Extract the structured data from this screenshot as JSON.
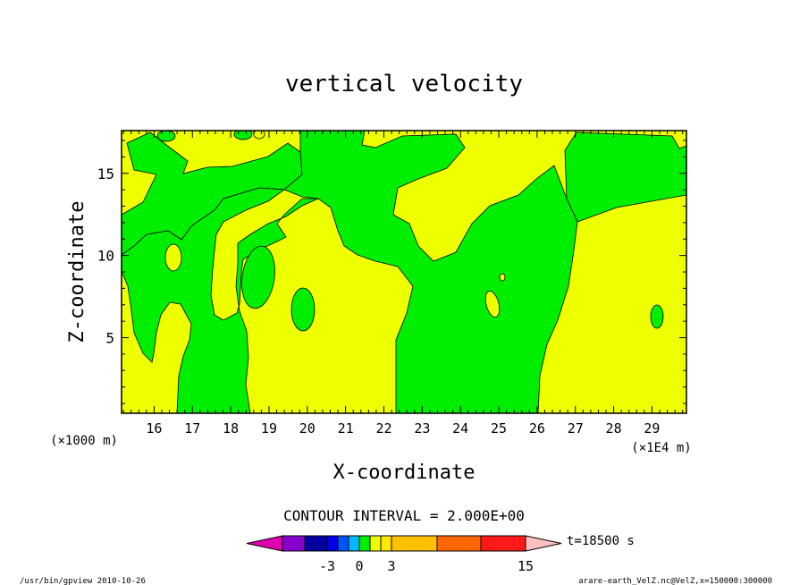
{
  "chart_data": {
    "type": "heatmap",
    "title": "vertical velocity",
    "xlabel": "X-coordinate",
    "ylabel": "Z-coordinate",
    "x_unit_left": "(×1000 m)",
    "x_unit_right": "(×1E4 m)",
    "xlim": [
      15.15,
      29.9
    ],
    "ylim": [
      0.4,
      17.6
    ],
    "x_ticks": [
      "16",
      "17",
      "18",
      "19",
      "20",
      "21",
      "22",
      "23",
      "24",
      "25",
      "26",
      "27",
      "28",
      "29"
    ],
    "y_ticks": [
      "5",
      "10",
      "15"
    ],
    "region_colors": {
      "positive": "#EEFF00",
      "negative": "#00EE00"
    },
    "contour_interval": "CONTOUR INTERVAL = 2.000E+00",
    "colorbar": {
      "segments": [
        "#8800CC",
        "#0000A0",
        "#0000E6",
        "#0055FF",
        "#00BBFF",
        "#00EE00",
        "#EEFF00",
        "#FFE800",
        "#FFC000",
        "#FF6600",
        "#FF1A1A",
        "#FF7777",
        "#FFBBBB"
      ],
      "arrow_left_color": "#E000B0",
      "arrow_right_color": "#FFC0C0",
      "tick_labels": [
        "-3",
        "0",
        "3",
        "15"
      ]
    },
    "time_label": "t=18500 s"
  },
  "footer": {
    "left": "/usr/bin/gpview  2010-10-26",
    "right": "arare-earth_VelZ.nc@VelZ,x=150000:300000"
  }
}
